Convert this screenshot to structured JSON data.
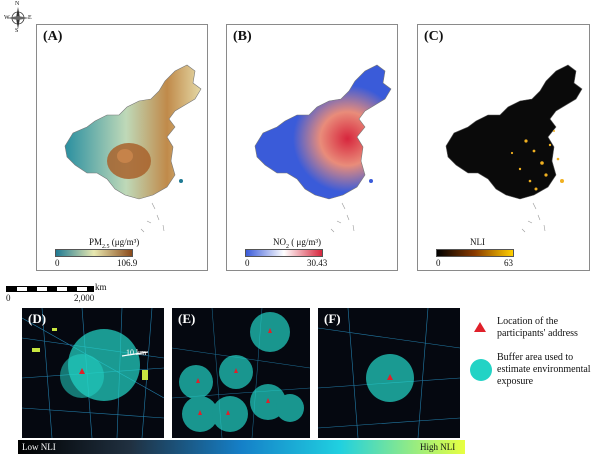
{
  "compass": {
    "north": "N",
    "south": "S",
    "east": "E",
    "west": "W"
  },
  "panels": [
    {
      "label": "(A)",
      "legend_title": "PM",
      "legend_sub": "2.5",
      "legend_unit": " (μg/m³)",
      "min": "0",
      "max": "106.9"
    },
    {
      "label": "(B)",
      "legend_title": "NO",
      "legend_sub": "2",
      "legend_unit": " ( μg/m³)",
      "min": "0",
      "max": "30.43"
    },
    {
      "label": "(C)",
      "legend_title": "NLI",
      "legend_sub": "",
      "legend_unit": "",
      "min": "0",
      "max": "63"
    }
  ],
  "scale": {
    "unit": "km",
    "start": "0",
    "end": "2,000"
  },
  "bottom_panels": [
    {
      "label": "(D)",
      "buffer_label": "10 km"
    },
    {
      "label": "(E)"
    },
    {
      "label": "(F)"
    }
  ],
  "legend": {
    "triangle_text": "Location of the participants' address",
    "buffer_text": "Buffer area used to estimate environmental exposure"
  },
  "gradient": {
    "low": "Low NLI",
    "high": "High NLI"
  },
  "colors": {
    "buffer": "#22d3c5",
    "triangle": "#e0202a",
    "pm_low": "#1f7a93",
    "pm_mid": "#e8e8b0",
    "pm_high": "#8b4a1a",
    "no2_low": "#3a5bd9",
    "no2_high": "#d7263d",
    "nli_low": "#000000",
    "nli_high": "#ffd000"
  }
}
